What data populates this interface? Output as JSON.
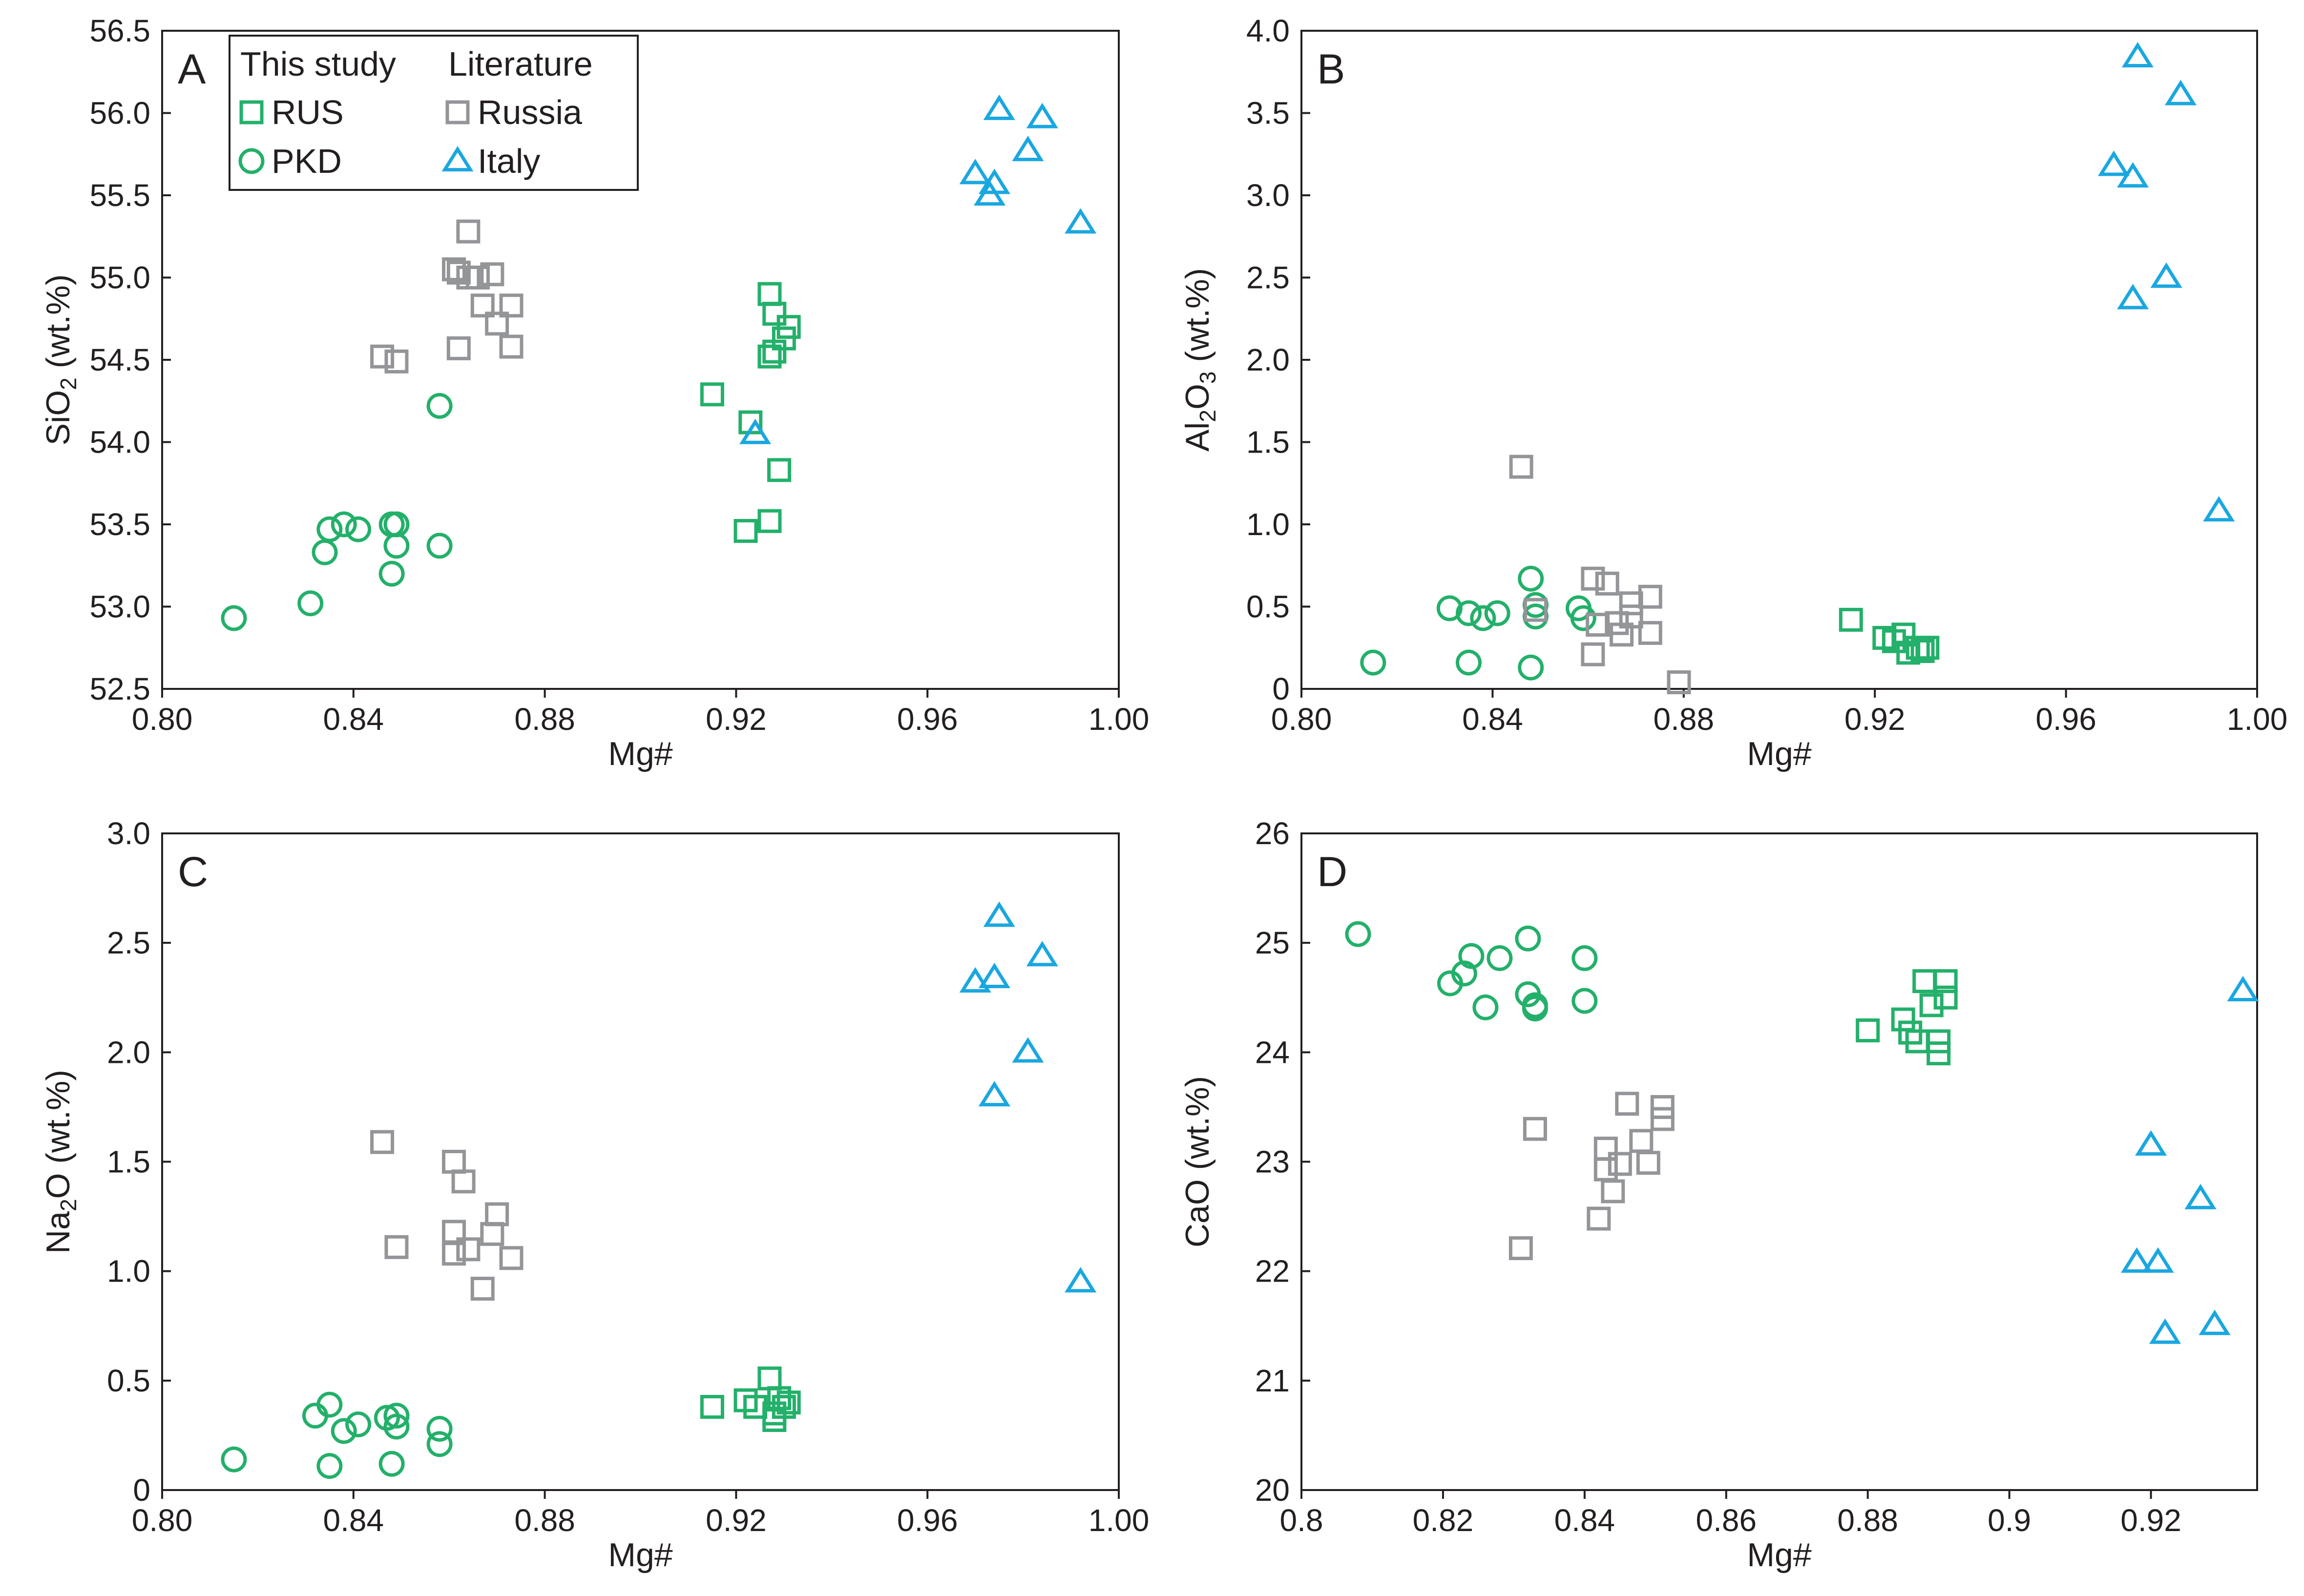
{
  "colors": {
    "green": "#23b06a",
    "gray": "#939598",
    "blue": "#1aa7e0",
    "axis": "#231f20"
  },
  "legend": {
    "header_this": "This study",
    "header_lit": "Literature",
    "items": [
      {
        "label": "RUS",
        "marker": "square",
        "color": "#23b06a"
      },
      {
        "label": "PKD",
        "marker": "circle",
        "color": "#23b06a"
      },
      {
        "label": "Russia",
        "marker": "square",
        "color": "#939598"
      },
      {
        "label": "Italy",
        "marker": "triangle",
        "color": "#1aa7e0"
      }
    ]
  },
  "chart_data": [
    {
      "panel": "A",
      "type": "scatter",
      "xlabel": "Mg#",
      "ylabel": {
        "pre": "SiO",
        "sub": "2",
        "post": " (wt.%)"
      },
      "xlim": [
        0.8,
        1.0
      ],
      "ylim": [
        52.5,
        56.5
      ],
      "xticks": [
        0.8,
        0.84,
        0.88,
        0.92,
        0.96,
        1.0
      ],
      "xtick_labels": [
        "0.80",
        "0.84",
        "0.88",
        "0.92",
        "0.96",
        "1.00"
      ],
      "yticks": [
        52.5,
        53.0,
        53.5,
        54.0,
        54.5,
        55.0,
        55.5,
        56.0,
        56.5
      ],
      "ytick_labels": [
        "52.5",
        "53.0",
        "53.5",
        "54.0",
        "54.5",
        "55.0",
        "55.5",
        "56.0",
        "56.5"
      ],
      "series": [
        {
          "name": "RUS",
          "marker": "square",
          "color": "#23b06a",
          "points": [
            [
              0.915,
              54.29
            ],
            [
              0.923,
              54.12
            ],
            [
              0.927,
              54.9
            ],
            [
              0.928,
              54.78
            ],
            [
              0.931,
              54.7
            ],
            [
              0.93,
              54.63
            ],
            [
              0.927,
              54.52
            ],
            [
              0.928,
              54.55
            ],
            [
              0.929,
              53.83
            ],
            [
              0.927,
              53.52
            ],
            [
              0.922,
              53.46
            ]
          ]
        },
        {
          "name": "PKD",
          "marker": "circle",
          "color": "#23b06a",
          "points": [
            [
              0.815,
              52.93
            ],
            [
              0.831,
              53.02
            ],
            [
              0.834,
              53.33
            ],
            [
              0.835,
              53.47
            ],
            [
              0.838,
              53.5
            ],
            [
              0.841,
              53.47
            ],
            [
              0.848,
              53.5
            ],
            [
              0.849,
              53.5
            ],
            [
              0.849,
              53.37
            ],
            [
              0.848,
              53.2
            ],
            [
              0.858,
              53.37
            ],
            [
              0.858,
              54.22
            ]
          ]
        },
        {
          "name": "Russia",
          "marker": "square",
          "color": "#939598",
          "points": [
            [
              0.846,
              54.52
            ],
            [
              0.849,
              54.49
            ],
            [
              0.861,
              55.05
            ],
            [
              0.862,
              55.03
            ],
            [
              0.864,
              55.28
            ],
            [
              0.864,
              55.0
            ],
            [
              0.866,
              55.0
            ],
            [
              0.869,
              55.02
            ],
            [
              0.867,
              54.83
            ],
            [
              0.873,
              54.83
            ],
            [
              0.87,
              54.72
            ],
            [
              0.862,
              54.57
            ],
            [
              0.873,
              54.58
            ]
          ]
        },
        {
          "name": "Italy",
          "marker": "triangle",
          "color": "#1aa7e0",
          "points": [
            [
              0.975,
              56.02
            ],
            [
              0.984,
              55.97
            ],
            [
              0.981,
              55.77
            ],
            [
              0.97,
              55.63
            ],
            [
              0.974,
              55.57
            ],
            [
              0.973,
              55.5
            ],
            [
              0.992,
              55.33
            ],
            [
              0.924,
              54.05
            ]
          ]
        }
      ]
    },
    {
      "panel": "B",
      "type": "scatter",
      "xlabel": "Mg#",
      "ylabel": {
        "pre": "Al",
        "sub": "2",
        "mid": "O",
        "sub2": "3",
        "post": " (wt.%)"
      },
      "xlim": [
        0.8,
        1.0
      ],
      "ylim": [
        0,
        4.0
      ],
      "xticks": [
        0.8,
        0.84,
        0.88,
        0.92,
        0.96,
        1.0
      ],
      "xtick_labels": [
        "0.80",
        "0.84",
        "0.88",
        "0.92",
        "0.96",
        "1.00"
      ],
      "yticks": [
        0,
        0.5,
        1.0,
        1.5,
        2.0,
        2.5,
        3.0,
        3.5,
        4.0
      ],
      "ytick_labels": [
        "0",
        "0.5",
        "1.0",
        "1.5",
        "2.0",
        "2.5",
        "3.0",
        "3.5",
        "4.0"
      ],
      "series": [
        {
          "name": "RUS",
          "marker": "square",
          "color": "#23b06a",
          "points": [
            [
              0.915,
              0.42
            ],
            [
              0.922,
              0.31
            ],
            [
              0.924,
              0.29
            ],
            [
              0.926,
              0.33
            ],
            [
              0.927,
              0.22
            ],
            [
              0.929,
              0.25
            ],
            [
              0.93,
              0.23
            ],
            [
              0.931,
              0.25
            ]
          ]
        },
        {
          "name": "PKD",
          "marker": "circle",
          "color": "#23b06a",
          "points": [
            [
              0.815,
              0.16
            ],
            [
              0.831,
              0.49
            ],
            [
              0.835,
              0.46
            ],
            [
              0.835,
              0.16
            ],
            [
              0.838,
              0.43
            ],
            [
              0.841,
              0.46
            ],
            [
              0.848,
              0.67
            ],
            [
              0.849,
              0.51
            ],
            [
              0.849,
              0.44
            ],
            [
              0.848,
              0.13
            ],
            [
              0.858,
              0.49
            ],
            [
              0.859,
              0.43
            ]
          ]
        },
        {
          "name": "Russia",
          "marker": "square",
          "color": "#939598",
          "points": [
            [
              0.846,
              1.35
            ],
            [
              0.849,
              0.48
            ],
            [
              0.861,
              0.67
            ],
            [
              0.862,
              0.39
            ],
            [
              0.864,
              0.64
            ],
            [
              0.861,
              0.21
            ],
            [
              0.866,
              0.4
            ],
            [
              0.867,
              0.33
            ],
            [
              0.869,
              0.44
            ],
            [
              0.869,
              0.52
            ],
            [
              0.873,
              0.56
            ],
            [
              0.873,
              0.34
            ],
            [
              0.879,
              0.04
            ]
          ]
        },
        {
          "name": "Italy",
          "marker": "triangle",
          "color": "#1aa7e0",
          "points": [
            [
              0.975,
              3.84
            ],
            [
              0.984,
              3.61
            ],
            [
              0.97,
              3.18
            ],
            [
              0.974,
              3.11
            ],
            [
              0.981,
              2.5
            ],
            [
              0.974,
              2.37
            ],
            [
              0.992,
              1.08
            ]
          ]
        }
      ]
    },
    {
      "panel": "C",
      "type": "scatter",
      "xlabel": "Mg#",
      "ylabel": {
        "pre": "Na",
        "sub": "2",
        "post": "O (wt.%)"
      },
      "xlim": [
        0.8,
        1.0
      ],
      "ylim": [
        0,
        3.0
      ],
      "xticks": [
        0.8,
        0.84,
        0.88,
        0.92,
        0.96,
        1.0
      ],
      "xtick_labels": [
        "0.80",
        "0.84",
        "0.88",
        "0.92",
        "0.96",
        "1.00"
      ],
      "yticks": [
        0,
        0.5,
        1.0,
        1.5,
        2.0,
        2.5,
        3.0
      ],
      "ytick_labels": [
        "0",
        "0.5",
        "1.0",
        "1.5",
        "2.0",
        "2.5",
        "3.0"
      ],
      "series": [
        {
          "name": "RUS",
          "marker": "square",
          "color": "#23b06a",
          "points": [
            [
              0.915,
              0.38
            ],
            [
              0.922,
              0.41
            ],
            [
              0.924,
              0.38
            ],
            [
              0.927,
              0.51
            ],
            [
              0.928,
              0.35
            ],
            [
              0.929,
              0.42
            ],
            [
              0.93,
              0.38
            ],
            [
              0.928,
              0.32
            ],
            [
              0.931,
              0.4
            ]
          ]
        },
        {
          "name": "PKD",
          "marker": "circle",
          "color": "#23b06a",
          "points": [
            [
              0.815,
              0.14
            ],
            [
              0.832,
              0.34
            ],
            [
              0.835,
              0.39
            ],
            [
              0.835,
              0.11
            ],
            [
              0.838,
              0.27
            ],
            [
              0.841,
              0.3
            ],
            [
              0.847,
              0.33
            ],
            [
              0.849,
              0.34
            ],
            [
              0.849,
              0.29
            ],
            [
              0.848,
              0.12
            ],
            [
              0.858,
              0.28
            ],
            [
              0.858,
              0.21
            ]
          ]
        },
        {
          "name": "Russia",
          "marker": "square",
          "color": "#939598",
          "points": [
            [
              0.846,
              1.59
            ],
            [
              0.861,
              1.5
            ],
            [
              0.863,
              1.41
            ],
            [
              0.849,
              1.11
            ],
            [
              0.861,
              1.18
            ],
            [
              0.861,
              1.08
            ],
            [
              0.864,
              1.1
            ],
            [
              0.867,
              0.92
            ],
            [
              0.869,
              1.17
            ],
            [
              0.87,
              1.26
            ],
            [
              0.873,
              1.06
            ]
          ]
        },
        {
          "name": "Italy",
          "marker": "triangle",
          "color": "#1aa7e0",
          "points": [
            [
              0.975,
              2.62
            ],
            [
              0.984,
              2.44
            ],
            [
              0.97,
              2.32
            ],
            [
              0.974,
              2.34
            ],
            [
              0.981,
              2.0
            ],
            [
              0.974,
              1.8
            ],
            [
              0.992,
              0.95
            ]
          ]
        }
      ]
    },
    {
      "panel": "D",
      "type": "scatter",
      "xlabel": "Mg#",
      "ylabel": {
        "pre": "CaO (wt.%)"
      },
      "xlim": [
        0.8,
        0.935
      ],
      "ylim": [
        20,
        26
      ],
      "xticks": [
        0.8,
        0.82,
        0.84,
        0.86,
        0.88,
        0.9,
        0.92
      ],
      "xtick_labels": [
        "0.8",
        "0.82",
        "0.84",
        "0.86",
        "0.88",
        "0.9",
        "0.92"
      ],
      "yticks": [
        20,
        21,
        22,
        23,
        24,
        25,
        26
      ],
      "ytick_labels": [
        "20",
        "21",
        "22",
        "23",
        "24",
        "25",
        "26"
      ],
      "series": [
        {
          "name": "RUS",
          "marker": "square",
          "color": "#23b06a",
          "points": [
            [
              0.88,
              24.2
            ],
            [
              0.885,
              24.3
            ],
            [
              0.886,
              24.18
            ],
            [
              0.887,
              24.1
            ],
            [
              0.888,
              24.65
            ],
            [
              0.891,
              24.65
            ],
            [
              0.891,
              24.5
            ],
            [
              0.889,
              24.43
            ],
            [
              0.89,
              24.1
            ],
            [
              0.89,
              23.99
            ]
          ]
        },
        {
          "name": "PKD",
          "marker": "circle",
          "color": "#23b06a",
          "points": [
            [
              0.808,
              25.08
            ],
            [
              0.821,
              24.63
            ],
            [
              0.823,
              24.72
            ],
            [
              0.824,
              24.88
            ],
            [
              0.826,
              24.41
            ],
            [
              0.828,
              24.86
            ],
            [
              0.832,
              25.04
            ],
            [
              0.832,
              24.53
            ],
            [
              0.833,
              24.43
            ],
            [
              0.833,
              24.4
            ],
            [
              0.84,
              24.86
            ],
            [
              0.84,
              24.47
            ]
          ]
        },
        {
          "name": "Russia",
          "marker": "square",
          "color": "#939598",
          "points": [
            [
              0.831,
              22.21
            ],
            [
              0.833,
              23.3
            ],
            [
              0.842,
              22.48
            ],
            [
              0.843,
              22.93
            ],
            [
              0.843,
              23.12
            ],
            [
              0.844,
              22.73
            ],
            [
              0.845,
              22.98
            ],
            [
              0.846,
              23.53
            ],
            [
              0.848,
              23.19
            ],
            [
              0.849,
              22.99
            ],
            [
              0.851,
              23.39
            ],
            [
              0.851,
              23.5
            ]
          ]
        },
        {
          "name": "Italy",
          "marker": "triangle",
          "color": "#1aa7e0",
          "points": [
            [
              0.933,
              24.56
            ],
            [
              0.92,
              23.15
            ],
            [
              0.927,
              22.66
            ],
            [
              0.918,
              22.08
            ],
            [
              0.921,
              22.08
            ],
            [
              0.922,
              21.43
            ],
            [
              0.929,
              21.51
            ]
          ]
        }
      ]
    }
  ]
}
